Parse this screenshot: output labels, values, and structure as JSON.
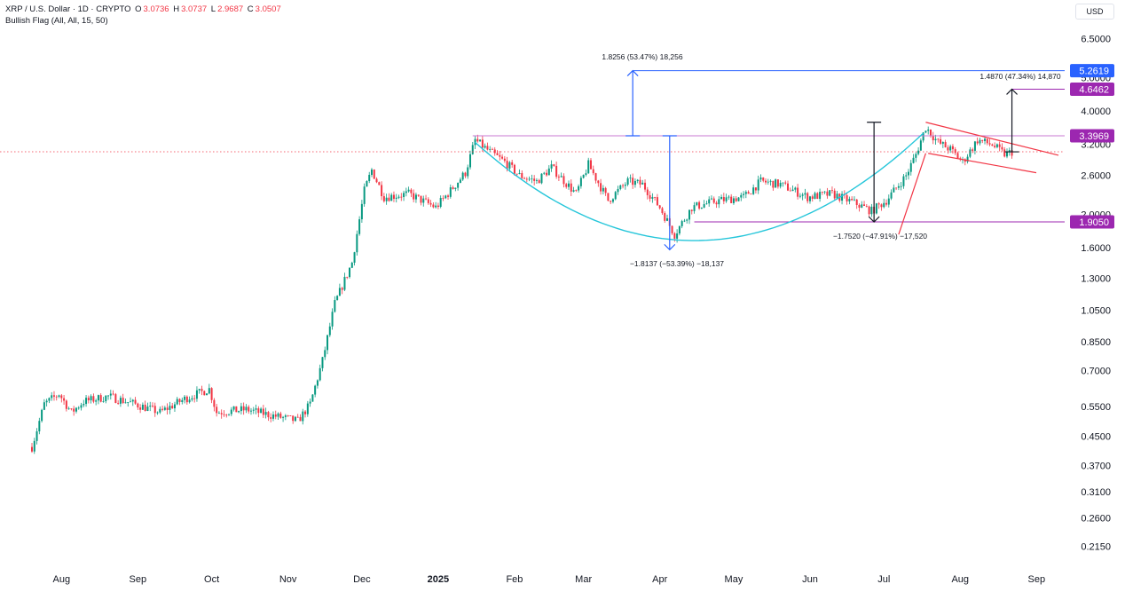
{
  "header": {
    "symbol": "XRP / U.S. Dollar · 1D · CRYPTO",
    "o_label": "O",
    "o_value": "3.0736",
    "h_label": "H",
    "h_value": "3.0737",
    "l_label": "L",
    "l_value": "2.9687",
    "c_label": "C",
    "c_value": "3.0507",
    "indicator": "Bullish Flag (All, All, 15, 50)"
  },
  "currency_button": "USD",
  "colors": {
    "up": "#089981",
    "down": "#f23645",
    "cup_curve": "#26c6da",
    "resistance": "#c879d3",
    "support": "#9c27b0",
    "flag": "#f23645",
    "blue_target": "#2962ff",
    "purple_tag": "#9c27b0"
  },
  "chart_data": {
    "type": "candlestick",
    "title": "XRP / U.S. Dollar · 1D · CRYPTO",
    "y_scale": "log",
    "y_ticks": [
      "6.5000",
      "5.0000",
      "4.0000",
      "3.2000",
      "2.6000",
      "2.0000",
      "1.6000",
      "1.3000",
      "1.0500",
      "0.8500",
      "0.7000",
      "0.5500",
      "0.4500",
      "0.3700",
      "0.3100",
      "0.2600",
      "0.2150"
    ],
    "x_ticks": [
      "Aug",
      "Sep",
      "Oct",
      "Nov",
      "Dec",
      "2025",
      "Feb",
      "Mar",
      "Apr",
      "May",
      "Jun",
      "Jul",
      "Aug",
      "Sep"
    ],
    "ohlc_last": {
      "open": 3.0736,
      "high": 3.0737,
      "low": 2.9687,
      "close": 3.0507
    },
    "price_path": [
      [
        "2024-07-20",
        0.42
      ],
      [
        "2024-07-25",
        0.56
      ],
      [
        "2024-07-31",
        0.6
      ],
      [
        "2024-08-05",
        0.53
      ],
      [
        "2024-08-10",
        0.57
      ],
      [
        "2024-08-20",
        0.59
      ],
      [
        "2024-08-31",
        0.56
      ],
      [
        "2024-09-10",
        0.53
      ],
      [
        "2024-09-20",
        0.58
      ],
      [
        "2024-09-30",
        0.62
      ],
      [
        "2024-10-03",
        0.53
      ],
      [
        "2024-10-15",
        0.54
      ],
      [
        "2024-10-25",
        0.52
      ],
      [
        "2024-11-05",
        0.5
      ],
      [
        "2024-11-10",
        0.56
      ],
      [
        "2024-11-15",
        0.75
      ],
      [
        "2024-11-20",
        1.1
      ],
      [
        "2024-11-27",
        1.45
      ],
      [
        "2024-12-02",
        2.35
      ],
      [
        "2024-12-05",
        2.7
      ],
      [
        "2024-12-10",
        2.25
      ],
      [
        "2024-12-20",
        2.3
      ],
      [
        "2024-12-31",
        2.1
      ],
      [
        "2025-01-06",
        2.35
      ],
      [
        "2025-01-12",
        2.65
      ],
      [
        "2025-01-16",
        3.3
      ],
      [
        "2025-01-22",
        3.05
      ],
      [
        "2025-01-28",
        2.85
      ],
      [
        "2025-02-03",
        2.6
      ],
      [
        "2025-02-10",
        2.5
      ],
      [
        "2025-02-16",
        2.75
      ],
      [
        "2025-02-26",
        2.3
      ],
      [
        "2025-03-03",
        2.8
      ],
      [
        "2025-03-11",
        2.2
      ],
      [
        "2025-03-19",
        2.5
      ],
      [
        "2025-03-25",
        2.45
      ],
      [
        "2025-04-01",
        2.1
      ],
      [
        "2025-04-07",
        1.75
      ],
      [
        "2025-04-14",
        2.1
      ],
      [
        "2025-04-25",
        2.2
      ],
      [
        "2025-05-05",
        2.25
      ],
      [
        "2025-05-12",
        2.5
      ],
      [
        "2025-05-20",
        2.45
      ],
      [
        "2025-05-31",
        2.25
      ],
      [
        "2025-06-10",
        2.3
      ],
      [
        "2025-06-20",
        2.15
      ],
      [
        "2025-06-26",
        2.05
      ],
      [
        "2025-07-02",
        2.2
      ],
      [
        "2025-07-10",
        2.6
      ],
      [
        "2025-07-14",
        3.0
      ],
      [
        "2025-07-18",
        3.6
      ],
      [
        "2025-07-23",
        3.25
      ],
      [
        "2025-07-28",
        3.1
      ],
      [
        "2025-08-02",
        2.85
      ],
      [
        "2025-08-08",
        3.3
      ],
      [
        "2025-08-14",
        3.2
      ],
      [
        "2025-08-19",
        3.0
      ],
      [
        "2025-08-22",
        3.05
      ]
    ],
    "price_tags": [
      {
        "value": "5.2619",
        "color": "#2962ff"
      },
      {
        "value": "4.6462",
        "color": "#9c27b0"
      },
      {
        "value": "3.3969",
        "color": "#9c27b0"
      },
      {
        "value": "1.9050",
        "color": "#9c27b0"
      }
    ],
    "annotations": [
      "1.8256 (53.47%) 18,256",
      "1.4870 (47.34%) 14,870",
      "−1.8137 (−53.39%) −18,137",
      "−1.7520 (−47.91%) −17,520"
    ],
    "grid": false
  }
}
